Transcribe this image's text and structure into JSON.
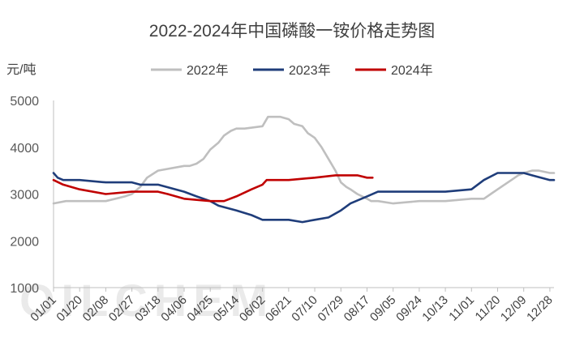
{
  "chart_data": {
    "type": "line",
    "title": "2022-2024年中国磷酸一铵价格走势图",
    "ylabel": "元/吨",
    "ylim": [
      1000,
      5000
    ],
    "yticks": [
      "5000",
      "4000",
      "3000",
      "2000",
      "1000"
    ],
    "x_tick_labels": [
      "01/01",
      "01/20",
      "02/08",
      "02/27",
      "03/18",
      "04/06",
      "04/25",
      "05/14",
      "06/02",
      "06/21",
      "07/10",
      "07/29",
      "08/17",
      "09/05",
      "09/24",
      "10/13",
      "11/01",
      "11/20",
      "12/09",
      "12/28"
    ],
    "grid": false,
    "legend_position": "top",
    "watermark": "OILCHEM",
    "series": [
      {
        "name": "2022年",
        "color": "#bfbfbf",
        "x": [
          "01/01",
          "01/10",
          "01/20",
          "02/08",
          "02/15",
          "02/22",
          "02/27",
          "03/05",
          "03/10",
          "03/18",
          "04/06",
          "04/10",
          "04/15",
          "04/20",
          "04/25",
          "05/01",
          "05/05",
          "05/10",
          "05/14",
          "05/20",
          "06/02",
          "06/06",
          "06/15",
          "06/21",
          "06/25",
          "07/01",
          "07/05",
          "07/10",
          "07/15",
          "07/20",
          "07/25",
          "07/29",
          "08/02",
          "08/05",
          "08/10",
          "08/17",
          "08/20",
          "08/25",
          "09/05",
          "09/24",
          "10/13",
          "11/01",
          "11/10",
          "11/15",
          "11/20",
          "11/25",
          "11/30",
          "12/05",
          "12/09",
          "12/15",
          "12/20",
          "12/28",
          "12/31"
        ],
        "values": [
          2800,
          2850,
          2850,
          2850,
          2900,
          2950,
          3000,
          3150,
          3350,
          3500,
          3600,
          3600,
          3650,
          3750,
          3950,
          4100,
          4250,
          4350,
          4400,
          4400,
          4450,
          4650,
          4650,
          4600,
          4500,
          4450,
          4300,
          4200,
          4000,
          3750,
          3500,
          3250,
          3150,
          3100,
          3000,
          2900,
          2850,
          2850,
          2800,
          2850,
          2850,
          2900,
          2900,
          3000,
          3100,
          3200,
          3300,
          3400,
          3450,
          3500,
          3500,
          3450,
          3450
        ]
      },
      {
        "name": "2023年",
        "color": "#1f3d7a",
        "x": [
          "01/01",
          "01/04",
          "01/08",
          "01/20",
          "02/08",
          "02/27",
          "03/05",
          "03/18",
          "04/06",
          "04/15",
          "04/25",
          "05/01",
          "05/14",
          "05/25",
          "06/02",
          "06/21",
          "07/01",
          "07/10",
          "07/20",
          "07/29",
          "08/05",
          "08/17",
          "08/25",
          "09/05",
          "09/24",
          "10/13",
          "11/01",
          "11/10",
          "11/20",
          "12/09",
          "12/15",
          "12/28",
          "12/31"
        ],
        "values": [
          3450,
          3350,
          3300,
          3300,
          3250,
          3250,
          3200,
          3200,
          3050,
          2950,
          2850,
          2750,
          2650,
          2550,
          2450,
          2450,
          2400,
          2450,
          2500,
          2650,
          2800,
          2950,
          3050,
          3050,
          3050,
          3050,
          3100,
          3300,
          3450,
          3450,
          3400,
          3300,
          3300
        ]
      },
      {
        "name": "2024年",
        "color": "#c00000",
        "x": [
          "01/01",
          "01/08",
          "01/20",
          "02/08",
          "02/27",
          "03/18",
          "03/25",
          "04/06",
          "04/25",
          "05/05",
          "05/14",
          "05/25",
          "06/02",
          "06/05",
          "06/21",
          "07/10",
          "07/25",
          "08/10",
          "08/17",
          "08/21"
        ],
        "values": [
          3300,
          3200,
          3100,
          3000,
          3050,
          3050,
          3000,
          2900,
          2850,
          2850,
          2950,
          3100,
          3200,
          3300,
          3300,
          3350,
          3400,
          3400,
          3350,
          3350
        ]
      }
    ]
  }
}
